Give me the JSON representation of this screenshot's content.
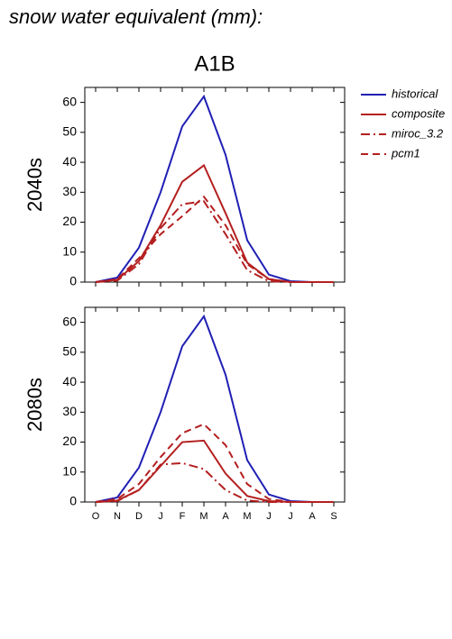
{
  "title": "snow water equivalent (mm):",
  "subtitle": "A1B",
  "chart_data": [
    {
      "type": "line",
      "ylabel": "2040s",
      "ylim": [
        0,
        65
      ],
      "yticks": [
        0,
        10,
        20,
        30,
        40,
        50,
        60
      ],
      "series": [
        {
          "name": "historical",
          "color": "#1f1fb4",
          "dash": "solid",
          "values": [
            0,
            1.5,
            11.5,
            30,
            52,
            62,
            42.5,
            14,
            2.5,
            0.3,
            0,
            0
          ]
        },
        {
          "name": "composite",
          "color": "#b41f1f",
          "dash": "solid",
          "values": [
            0,
            0.8,
            7,
            19,
            33.5,
            39,
            23,
            6.5,
            1,
            0,
            0,
            0
          ]
        },
        {
          "name": "miroc_3.2",
          "color": "#b41f1f",
          "dash": "dashdot",
          "values": [
            0,
            0.5,
            6,
            18,
            26,
            27,
            16,
            4,
            0.3,
            0,
            0,
            0
          ]
        },
        {
          "name": "pcm1",
          "color": "#b41f1f",
          "dash": "dashed",
          "values": [
            0,
            1,
            8,
            16,
            22,
            28.5,
            19,
            6,
            1,
            0,
            0,
            0
          ]
        }
      ]
    },
    {
      "type": "line",
      "ylabel": "2080s",
      "ylim": [
        0,
        65
      ],
      "yticks": [
        0,
        10,
        20,
        30,
        40,
        50,
        60
      ],
      "categories": [
        "O",
        "N",
        "D",
        "J",
        "F",
        "M",
        "A",
        "M",
        "J",
        "J",
        "A",
        "S"
      ],
      "series": [
        {
          "color": "#1f1fb4",
          "dash": "solid",
          "values": [
            0,
            1.5,
            11.5,
            30,
            52,
            62,
            42.5,
            14,
            2.5,
            0.3,
            0,
            0
          ]
        },
        {
          "color": "#b41f1f",
          "dash": "solid",
          "values": [
            0,
            0.5,
            4,
            12,
            20,
            20.5,
            9.5,
            2,
            0.3,
            0,
            0,
            0
          ]
        },
        {
          "color": "#b41f1f",
          "dash": "dashdot",
          "values": [
            0,
            0.3,
            4,
            12.5,
            13,
            11,
            4,
            0.5,
            0,
            0,
            0,
            0
          ]
        },
        {
          "color": "#b41f1f",
          "dash": "dashed",
          "values": [
            0,
            1,
            6,
            15,
            23,
            26,
            19,
            6,
            1,
            0,
            0,
            0
          ]
        }
      ]
    }
  ]
}
